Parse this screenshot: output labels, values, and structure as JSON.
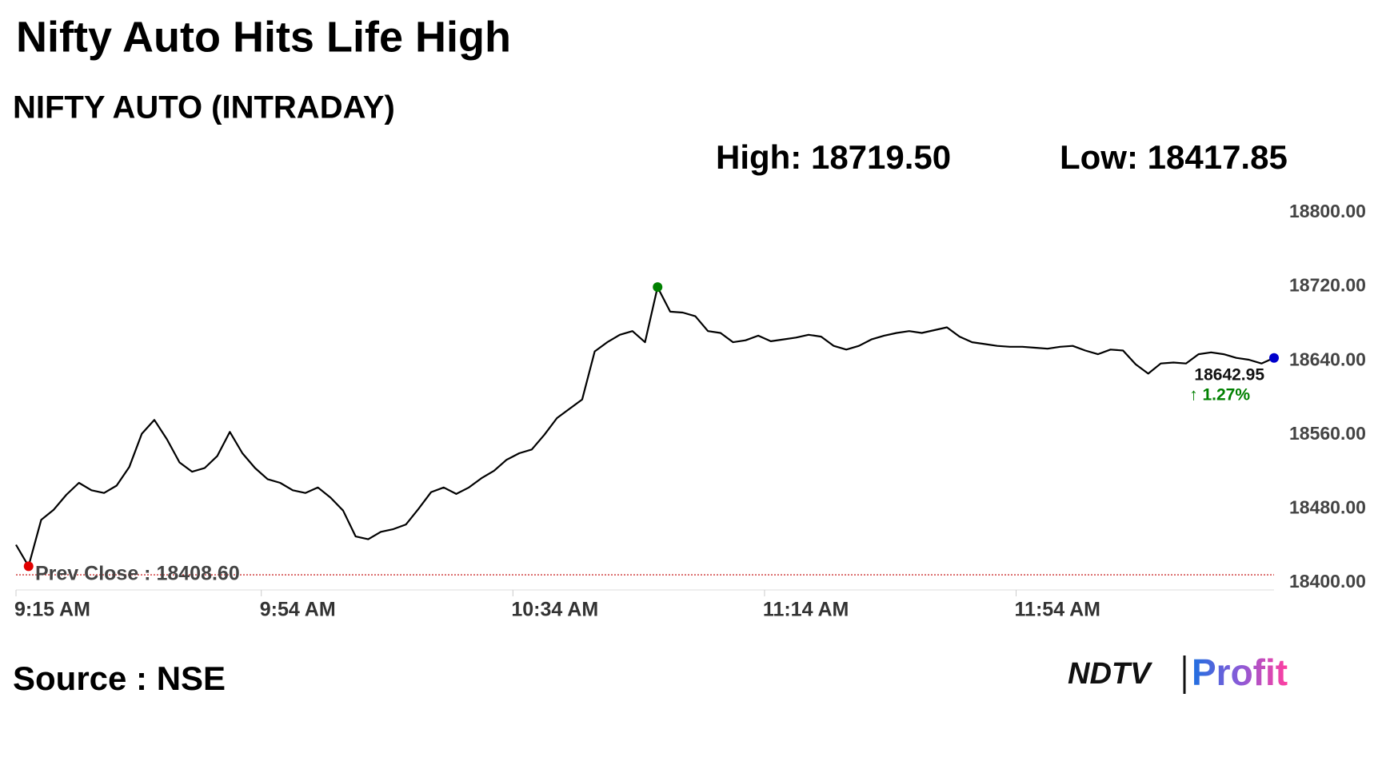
{
  "chart_data": {
    "type": "line",
    "title": "Nifty Auto Hits Life High",
    "subtitle": "NIFTY AUTO (INTRADAY)",
    "high_label": "High: 18719.50",
    "low_label": "Low: 18417.85",
    "prev_close": {
      "value": 18408.6,
      "label": "Prev Close : 18408.60"
    },
    "change_label": "↑ 1.27%",
    "source": "Source : NSE",
    "logo": {
      "left": "NDTV",
      "right": "Profit"
    },
    "x": [
      "9:15 AM",
      "9:17 AM",
      "9:19 AM",
      "9:21 AM",
      "9:23 AM",
      "9:25 AM",
      "9:27 AM",
      "9:29 AM",
      "9:31 AM",
      "9:33 AM",
      "9:35 AM",
      "9:37 AM",
      "9:39 AM",
      "9:41 AM",
      "9:43 AM",
      "9:45 AM",
      "9:47 AM",
      "9:49 AM",
      "9:51 AM",
      "9:53 AM",
      "9:55 AM",
      "9:57 AM",
      "9:59 AM",
      "10:01 AM",
      "10:03 AM",
      "10:05 AM",
      "10:07 AM",
      "10:09 AM",
      "10:11 AM",
      "10:13 AM",
      "10:15 AM",
      "10:17 AM",
      "10:19 AM",
      "10:21 AM",
      "10:23 AM",
      "10:25 AM",
      "10:27 AM",
      "10:29 AM",
      "10:31 AM",
      "10:33 AM",
      "10:35 AM",
      "10:37 AM",
      "10:39 AM",
      "10:41 AM",
      "10:43 AM",
      "10:45 AM",
      "10:47 AM",
      "10:49 AM",
      "10:51 AM",
      "10:53 AM",
      "10:55 AM",
      "10:57 AM",
      "10:59 AM",
      "11:01 AM",
      "11:03 AM",
      "11:05 AM",
      "11:07 AM",
      "11:09 AM",
      "11:11 AM",
      "11:13 AM",
      "11:15 AM",
      "11:17 AM",
      "11:19 AM",
      "11:21 AM",
      "11:23 AM",
      "11:25 AM",
      "11:27 AM",
      "11:29 AM",
      "11:31 AM",
      "11:33 AM",
      "11:35 AM",
      "11:37 AM",
      "11:39 AM",
      "11:41 AM",
      "11:43 AM",
      "11:45 AM",
      "11:47 AM",
      "11:49 AM",
      "11:51 AM",
      "11:53 AM",
      "11:55 AM",
      "11:57 AM",
      "11:59 AM",
      "12:01 PM",
      "12:03 PM",
      "12:05 PM",
      "12:07 PM",
      "12:09 PM",
      "12:11 PM",
      "12:13 PM",
      "12:15 PM",
      "12:17 PM",
      "12:19 PM",
      "12:21 PM",
      "12:23 PM",
      "12:25 PM",
      "12:27 PM",
      "12:29 PM",
      "12:31 PM",
      "12:33 PM",
      "12:35 PM"
    ],
    "series": [
      {
        "color": "#000000",
        "values": [
          18441,
          18417.85,
          18468,
          18479,
          18495,
          18508,
          18500,
          18497,
          18505,
          18525,
          18561,
          18576,
          18555,
          18530,
          18520,
          18524,
          18537,
          18563,
          18540,
          18524,
          18512,
          18508,
          18500,
          18497,
          18503,
          18492,
          18478,
          18450,
          18447,
          18455,
          18458,
          18463,
          18480,
          18498,
          18503,
          18496,
          18503,
          18513,
          18521,
          18533,
          18540,
          18544,
          18560,
          18578,
          18588,
          18598,
          18650,
          18660,
          18668,
          18672,
          18660,
          18719.5,
          18693,
          18692,
          18688,
          18672,
          18670,
          18660,
          18662,
          18667,
          18661,
          18663,
          18665,
          18668,
          18666,
          18656,
          18652,
          18656,
          18663,
          18667,
          18670,
          18672,
          18670,
          18673,
          18676,
          18666,
          18660,
          18658,
          18656,
          18655,
          18655,
          18654,
          18653,
          18655,
          18656,
          18651,
          18647,
          18652,
          18651,
          18636,
          18626,
          18637,
          18638,
          18637,
          18647,
          18649,
          18647,
          18643,
          18641,
          18637,
          18642.95
        ]
      }
    ],
    "xticks": [
      "9:15 AM",
      "9:54 AM",
      "10:34 AM",
      "11:14 AM",
      "11:54 AM"
    ],
    "xlim": [
      "9:15 AM",
      "12:35 PM"
    ],
    "ylim": [
      18400,
      18800
    ],
    "yticks": [
      {
        "value": 18400,
        "label": "18400.00"
      },
      {
        "value": 18480,
        "label": "18480.00"
      },
      {
        "value": 18560,
        "label": "18560.00"
      },
      {
        "value": 18640,
        "label": "18640.00"
      },
      {
        "value": 18720,
        "label": "18720.00"
      },
      {
        "value": 18800,
        "label": "18800.00"
      }
    ],
    "low_marker_color": "#e00000",
    "high_marker_color": "#008000",
    "last_marker_color": "#0000cc",
    "prev_close_color": "#c00000",
    "change_color": "#008000"
  }
}
